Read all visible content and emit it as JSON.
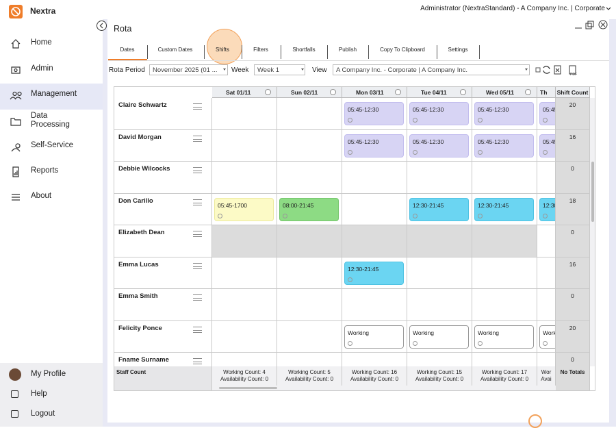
{
  "app": {
    "name": "Nextra"
  },
  "topbar": {
    "user": "Administrator (NextraStandard) - A Company Inc. | Corporate"
  },
  "sidebar": {
    "items": [
      "Home",
      "Admin",
      "Management",
      "Data Processing",
      "Self-Service",
      "Reports",
      "About"
    ],
    "bottom": [
      "My Profile",
      "Help",
      "Logout"
    ]
  },
  "panel": {
    "title": "Rota"
  },
  "tabs": [
    "Dates",
    "Custom Dates",
    "Shifts",
    "Filters",
    "Shortfalls",
    "Publish",
    "Copy To Clipboard",
    "Settings"
  ],
  "filters": {
    "period_label": "Rota Period",
    "period_value": "November 2025 (01 ...",
    "week_label": "Week",
    "week_value": "Week 1",
    "view_label": "View",
    "view_value": "A Company Inc. - Corporate | A Company Inc."
  },
  "grid": {
    "days": [
      "Sat 01/11",
      "Sun 02/11",
      "Mon 03/11",
      "Tue 04/11",
      "Wed 05/11",
      "Th"
    ],
    "shift_count_header": "Shift Count",
    "rows": [
      {
        "name": "Claire Schwartz",
        "shift_count": 20,
        "cells": [
          null,
          null,
          {
            "text": "05:45-12:30",
            "kind": "purple"
          },
          {
            "text": "05:45-12:30",
            "kind": "purple"
          },
          {
            "text": "05:45-12:30",
            "kind": "purple"
          },
          {
            "text": "05:45",
            "kind": "purple"
          }
        ]
      },
      {
        "name": "David Morgan",
        "shift_count": 16,
        "cells": [
          null,
          null,
          {
            "text": "05:45-12:30",
            "kind": "purple"
          },
          {
            "text": "05:45-12:30",
            "kind": "purple"
          },
          {
            "text": "05:45-12:30",
            "kind": "purple"
          },
          {
            "text": "05:45",
            "kind": "purple"
          }
        ]
      },
      {
        "name": "Debbie Wilcocks",
        "shift_count": 0,
        "cells": [
          null,
          null,
          null,
          null,
          null,
          null
        ]
      },
      {
        "name": "Don Carillo",
        "shift_count": 18,
        "cells": [
          {
            "text": "05:45-1700",
            "kind": "yellow"
          },
          {
            "text": "08:00-21:45",
            "kind": "green"
          },
          null,
          {
            "text": "12:30-21:45",
            "kind": "blue"
          },
          {
            "text": "12:30-21:45",
            "kind": "blue"
          },
          {
            "text": "12:30",
            "kind": "blue"
          }
        ]
      },
      {
        "name": "Elizabeth Dean",
        "shift_count": 0,
        "cells": [
          {
            "kind": "off"
          },
          {
            "kind": "off"
          },
          {
            "kind": "off"
          },
          {
            "kind": "off"
          },
          {
            "kind": "off"
          },
          null
        ]
      },
      {
        "name": "Emma Lucas",
        "shift_count": 16,
        "cells": [
          null,
          null,
          {
            "text": "12:30-21:45",
            "kind": "blue"
          },
          null,
          null,
          null
        ]
      },
      {
        "name": "Emma Smith",
        "shift_count": 0,
        "cells": [
          null,
          null,
          null,
          null,
          null,
          null
        ]
      },
      {
        "name": "Felicity Ponce",
        "shift_count": 20,
        "cells": [
          null,
          null,
          {
            "text": "Working",
            "kind": "working"
          },
          {
            "text": "Working",
            "kind": "working"
          },
          {
            "text": "Working",
            "kind": "working"
          },
          {
            "text": "Work",
            "kind": "working"
          }
        ]
      },
      {
        "name": "Fname Surname",
        "shift_count": 0,
        "cells": [
          null,
          null,
          null,
          null,
          null,
          null
        ]
      }
    ],
    "footer": {
      "label": "Staff Count",
      "counts": [
        {
          "working": "Working Count: 4",
          "availability": "Availability Count: 0"
        },
        {
          "working": "Working Count: 5",
          "availability": "Availability Count: 0"
        },
        {
          "working": "Working Count: 16",
          "availability": "Availability Count: 0"
        },
        {
          "working": "Working Count: 15",
          "availability": "Availability Count: 0"
        },
        {
          "working": "Working Count: 17",
          "availability": "Availability Count: 0"
        },
        {
          "working": "Wor",
          "availability": "Avai"
        }
      ],
      "totals": "No Totals"
    }
  }
}
